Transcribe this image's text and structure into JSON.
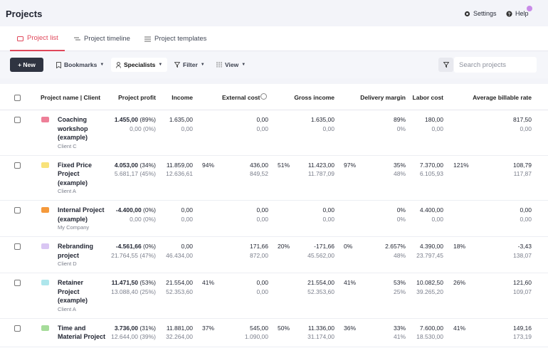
{
  "header": {
    "title": "Projects",
    "settings": "Settings",
    "help": "Help"
  },
  "tabs": [
    "Project list",
    "Project timeline",
    "Project templates"
  ],
  "toolbar": {
    "new": "+ New",
    "bookmarks": "Bookmarks",
    "specialists": "Specialists",
    "filter": "Filter",
    "view": "View",
    "search_placeholder": "Search projects"
  },
  "table": {
    "columns": [
      "Project name | Client",
      "Project profit",
      "Income",
      "External cost",
      "Gross income",
      "Delivery margin",
      "Labor cost",
      "Average billable rate"
    ],
    "rows": [
      {
        "name": "Coaching workshop (example)",
        "client": "Client C",
        "color": "#ee7f98",
        "profit": "1.455,00",
        "profit_pct": "(89%)",
        "profit_planned": "0,00",
        "profit_planned_pct": "(0%)",
        "income": "1.635,00",
        "income_planned": "0,00",
        "external_cost": "0,00",
        "external_cost_planned": "0,00",
        "gross_income": "1.635,00",
        "gross_income_planned": "0,00",
        "delivery_margin": "89%",
        "delivery_margin_planned": "0%",
        "labor_cost": "180,00",
        "labor_cost_planned": "0,00",
        "rate": "817,50",
        "rate_planned": "0,00"
      },
      {
        "name": "Fixed Price Project (example)",
        "client": "Client A",
        "color": "#f8e27a",
        "profit": "4.053,00",
        "profit_pct": "(34%)",
        "profit_planned": "5.681,17",
        "profit_planned_pct": "(45%)",
        "income": "11.859,00",
        "income_planned": "12.636,61",
        "income_pct": "94%",
        "external_cost": "436,00",
        "external_cost_planned": "849,52",
        "external_cost_pct": "51%",
        "gross_income": "11.423,00",
        "gross_income_planned": "11.787,09",
        "gross_income_pct": "97%",
        "delivery_margin": "35%",
        "delivery_margin_planned": "48%",
        "labor_cost": "7.370,00",
        "labor_cost_planned": "6.105,93",
        "labor_cost_pct": "121%",
        "rate": "108,79",
        "rate_planned": "117,87"
      },
      {
        "name": "Internal Project (example)",
        "client": "My Company",
        "color": "#f59a3c",
        "profit": "-4.400,00",
        "profit_pct": "(0%)",
        "profit_planned": "0,00",
        "profit_planned_pct": "(0%)",
        "income": "0,00",
        "income_planned": "0,00",
        "external_cost": "0,00",
        "external_cost_planned": "0,00",
        "gross_income": "0,00",
        "gross_income_planned": "0,00",
        "delivery_margin": "0%",
        "delivery_margin_planned": "0%",
        "labor_cost": "4.400,00",
        "labor_cost_planned": "0,00",
        "rate": "0,00",
        "rate_planned": "0,00"
      },
      {
        "name": "Rebranding project",
        "client": "Client D",
        "color": "#d9c6f3",
        "profit": "-4.561,66",
        "profit_pct": "(0%)",
        "profit_planned": "21.764,55",
        "profit_planned_pct": "(47%)",
        "income": "0,00",
        "income_planned": "46.434,00",
        "external_cost": "171,66",
        "external_cost_planned": "872,00",
        "external_cost_pct": "20%",
        "gross_income": "-171,66",
        "gross_income_planned": "45.562,00",
        "gross_income_pct": "0%",
        "delivery_margin": "2.657%",
        "delivery_margin_planned": "48%",
        "labor_cost": "4.390,00",
        "labor_cost_planned": "23.797,45",
        "labor_cost_pct": "18%",
        "rate": "-3,43",
        "rate_planned": "138,07"
      },
      {
        "name": "Retainer Project (example)",
        "client": "Client A",
        "color": "#aee6ec",
        "profit": "11.471,50",
        "profit_pct": "(53%)",
        "profit_planned": "13.088,40",
        "profit_planned_pct": "(25%)",
        "income": "21.554,00",
        "income_planned": "52.353,60",
        "income_pct": "41%",
        "external_cost": "0,00",
        "external_cost_planned": "0,00",
        "gross_income": "21.554,00",
        "gross_income_planned": "52.353,60",
        "gross_income_pct": "41%",
        "delivery_margin": "53%",
        "delivery_margin_planned": "25%",
        "labor_cost": "10.082,50",
        "labor_cost_planned": "39.265,20",
        "labor_cost_pct": "26%",
        "rate": "121,60",
        "rate_planned": "109,07"
      },
      {
        "name": "Time and Material Project",
        "color": "#a6dc9a",
        "profit": "3.736,00",
        "profit_pct": "(31%)",
        "profit_planned": "12.644,00",
        "profit_planned_pct": "(39%)",
        "income": "11.881,00",
        "income_planned": "32.264,00",
        "income_pct": "37%",
        "external_cost": "545,00",
        "external_cost_planned": "1.090,00",
        "external_cost_pct": "50%",
        "gross_income": "11.336,00",
        "gross_income_planned": "31.174,00",
        "gross_income_pct": "36%",
        "delivery_margin": "33%",
        "delivery_margin_planned": "41%",
        "labor_cost": "7.600,00",
        "labor_cost_planned": "18.530,00",
        "labor_cost_pct": "41%",
        "rate": "149,16",
        "rate_planned": "173,19"
      }
    ]
  }
}
